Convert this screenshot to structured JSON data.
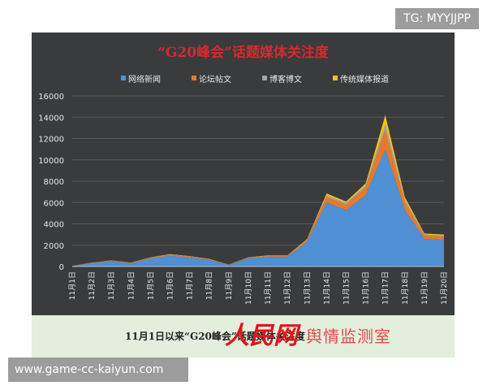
{
  "watermark": {
    "top_right": "TG: MYYJJPP",
    "bottom_left": "www.game-cc-kaiyun.com"
  },
  "figure": {
    "caption": "11月1日以来“G20峰会”话题媒体关注度",
    "logo_text": "人民网",
    "logo_sub": "舆情监测室"
  },
  "chart_data": {
    "type": "area",
    "stacked": true,
    "title": "“G20峰会”话题媒体关注度",
    "categories": [
      "11月1日",
      "11月2日",
      "11月3日",
      "11月4日",
      "11月5日",
      "11月6日",
      "11月7日",
      "11月8日",
      "11月9日",
      "11月10日",
      "11月11日",
      "11月12日",
      "11月13日",
      "11月14日",
      "11月15日",
      "11月16日",
      "11月17日",
      "11月18日",
      "11月19日",
      "11月20日"
    ],
    "series": [
      {
        "name": "网络新闻",
        "color": "#4f90d4",
        "values": [
          50,
          300,
          500,
          300,
          750,
          1000,
          850,
          600,
          150,
          750,
          900,
          900,
          2300,
          6000,
          5300,
          6700,
          11000,
          5300,
          2600,
          2500
        ]
      },
      {
        "name": "论坛帖文",
        "color": "#e8792c",
        "values": [
          10,
          30,
          40,
          30,
          60,
          80,
          70,
          50,
          20,
          60,
          70,
          70,
          150,
          500,
          500,
          700,
          1800,
          700,
          300,
          300
        ]
      },
      {
        "name": "博客博文",
        "color": "#a5a5a5",
        "values": [
          5,
          20,
          20,
          20,
          30,
          40,
          30,
          30,
          10,
          30,
          40,
          40,
          60,
          150,
          150,
          200,
          500,
          200,
          100,
          100
        ]
      },
      {
        "name": "传统媒体报道",
        "color": "#f2c21b",
        "values": [
          5,
          20,
          20,
          20,
          30,
          40,
          30,
          30,
          10,
          30,
          40,
          40,
          60,
          200,
          150,
          200,
          900,
          300,
          100,
          100
        ]
      }
    ],
    "ylim": [
      0,
      16000
    ],
    "yticks": [
      0,
      2000,
      4000,
      6000,
      8000,
      10000,
      12000,
      14000,
      16000
    ],
    "grid": true,
    "legend_position": "top"
  }
}
